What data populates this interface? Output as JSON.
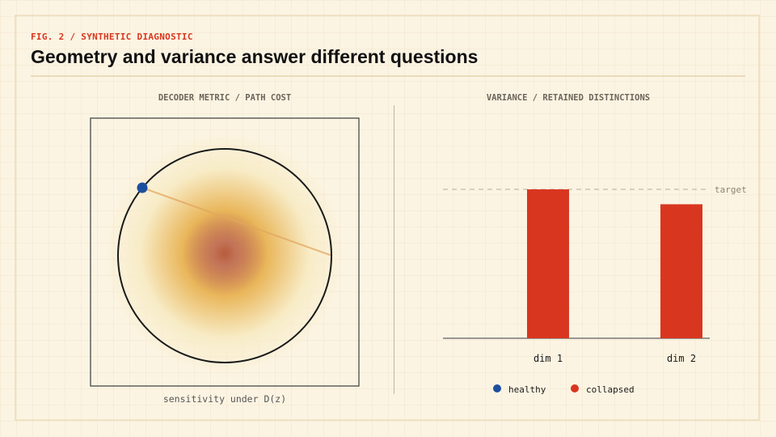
{
  "figure": {
    "kicker": "FIG. 2 / SYNTHETIC DIAGNOSTIC",
    "title": "Geometry and variance answer different questions"
  },
  "left_panel": {
    "title": "DECODER METRIC / PATH COST",
    "caption": "sensitivity under D(z)"
  },
  "right_panel": {
    "title": "VARIANCE / RETAINED DISTINCTIONS"
  },
  "chart_data": [
    {
      "type": "other",
      "description_kind": "metric-field",
      "title": "DECODER METRIC / PATH COST",
      "xlabel": "sensitivity under D(z)",
      "colors": {
        "field_center": "#b04a2a",
        "field_mid": "#e9b65a",
        "field_edge": "#f8ecc7",
        "marker": "#1d4fa0",
        "circle": "#1a1a1a",
        "path": "#e2a55f"
      }
    },
    {
      "type": "bar",
      "title": "VARIANCE / RETAINED DISTINCTIONS",
      "categories": [
        "dim 1",
        "dim 2"
      ],
      "series": [
        {
          "name": "healthy",
          "color": "#1d4fa0",
          "values": [
            0,
            0
          ]
        },
        {
          "name": "collapsed",
          "color": "#d9361f",
          "values": [
            1.0,
            0.9
          ]
        }
      ],
      "target": {
        "label": "target",
        "value": 1.0
      },
      "ylim": [
        0,
        1.0
      ],
      "legend": "bottom-center"
    }
  ]
}
